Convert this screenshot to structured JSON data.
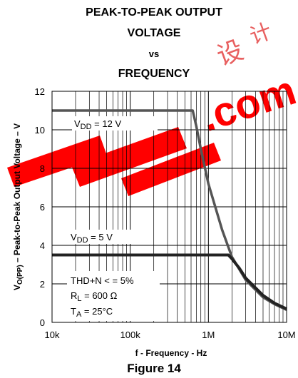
{
  "chart_data": {
    "type": "line",
    "title_lines": [
      "PEAK-TO-PEAK OUTPUT",
      "VOLTAGE",
      "vs",
      "FREQUENCY"
    ],
    "xlabel": "f - Frequency - Hz",
    "ylabel": {
      "prefix": "V",
      "subscript": "O(PP)",
      "suffix": " – Peak-to-Peak Output Voltage – V"
    },
    "xscale": "log",
    "xlim": [
      10000,
      10000000
    ],
    "ylim": [
      0,
      12
    ],
    "x_ticks": [
      {
        "value": 10000,
        "label": "10k"
      },
      {
        "value": 100000,
        "label": "100k"
      },
      {
        "value": 1000000,
        "label": "1M"
      },
      {
        "value": 10000000,
        "label": "10M"
      }
    ],
    "y_ticks": [
      {
        "value": 0,
        "label": "0"
      },
      {
        "value": 2,
        "label": "2"
      },
      {
        "value": 4,
        "label": "4"
      },
      {
        "value": 6,
        "label": "6"
      },
      {
        "value": 8,
        "label": "8"
      },
      {
        "value": 10,
        "label": "10"
      },
      {
        "value": 12,
        "label": "12"
      }
    ],
    "grid": true,
    "series": [
      {
        "label_parts": [
          "V",
          "DD",
          " = 12  V"
        ],
        "color": "#555555",
        "x": [
          10000,
          100000,
          630000,
          700000,
          800000,
          1000000,
          1500000,
          2000000,
          3000000,
          5000000,
          7000000,
          10000000
        ],
        "y": [
          11,
          11,
          11,
          10.2,
          9.0,
          7.2,
          4.8,
          3.4,
          2.2,
          1.3,
          0.95,
          0.65
        ]
      },
      {
        "label_parts": [
          "V",
          "DD",
          " = 5  V"
        ],
        "color": "#222222",
        "x": [
          10000,
          100000,
          1000000,
          1800000,
          2000000,
          2500000,
          3000000,
          5000000,
          7000000,
          10000000
        ],
        "y": [
          3.5,
          3.5,
          3.5,
          3.5,
          3.3,
          2.8,
          2.3,
          1.4,
          1.0,
          0.7
        ]
      }
    ],
    "conditions": [
      {
        "parts": [
          "THD+N < = 5%"
        ]
      },
      {
        "parts": [
          "R",
          "L",
          " = 600 Ω"
        ]
      },
      {
        "parts": [
          "T",
          "A",
          " = 25°C"
        ]
      }
    ],
    "caption": "Figure 14"
  },
  "watermark": {
    "text": ".com",
    "color": "#ff0000"
  }
}
